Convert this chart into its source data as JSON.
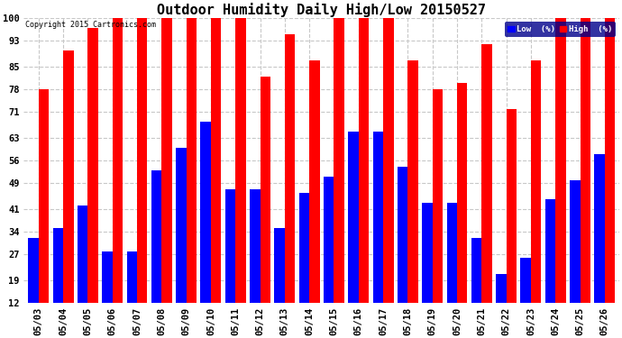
{
  "title": "Outdoor Humidity Daily High/Low 20150527",
  "copyright": "Copyright 2015 Cartronics.com",
  "legend_low": "Low  (%)",
  "legend_high": "High  (%)",
  "dates": [
    "05/03",
    "05/04",
    "05/05",
    "05/06",
    "05/07",
    "05/08",
    "05/09",
    "05/10",
    "05/11",
    "05/12",
    "05/13",
    "05/14",
    "05/15",
    "05/16",
    "05/17",
    "05/18",
    "05/19",
    "05/20",
    "05/21",
    "05/22",
    "05/23",
    "05/24",
    "05/25",
    "05/26"
  ],
  "high_values": [
    78,
    90,
    97,
    100,
    100,
    100,
    100,
    100,
    100,
    82,
    95,
    87,
    100,
    100,
    100,
    87,
    78,
    80,
    92,
    72,
    87,
    100,
    100,
    100
  ],
  "low_values": [
    32,
    35,
    42,
    28,
    28,
    53,
    60,
    68,
    47,
    47,
    35,
    46,
    51,
    65,
    65,
    54,
    43,
    43,
    32,
    21,
    26,
    44,
    50,
    58
  ],
  "high_color": "#ff0000",
  "low_color": "#0000ff",
  "background_color": "#ffffff",
  "grid_color": "#c8c8c8",
  "yticks": [
    12,
    19,
    27,
    34,
    41,
    49,
    56,
    63,
    71,
    78,
    85,
    93,
    100
  ],
  "ymin": 12,
  "ymax": 100,
  "title_fontsize": 11,
  "tick_fontsize": 7.5
}
